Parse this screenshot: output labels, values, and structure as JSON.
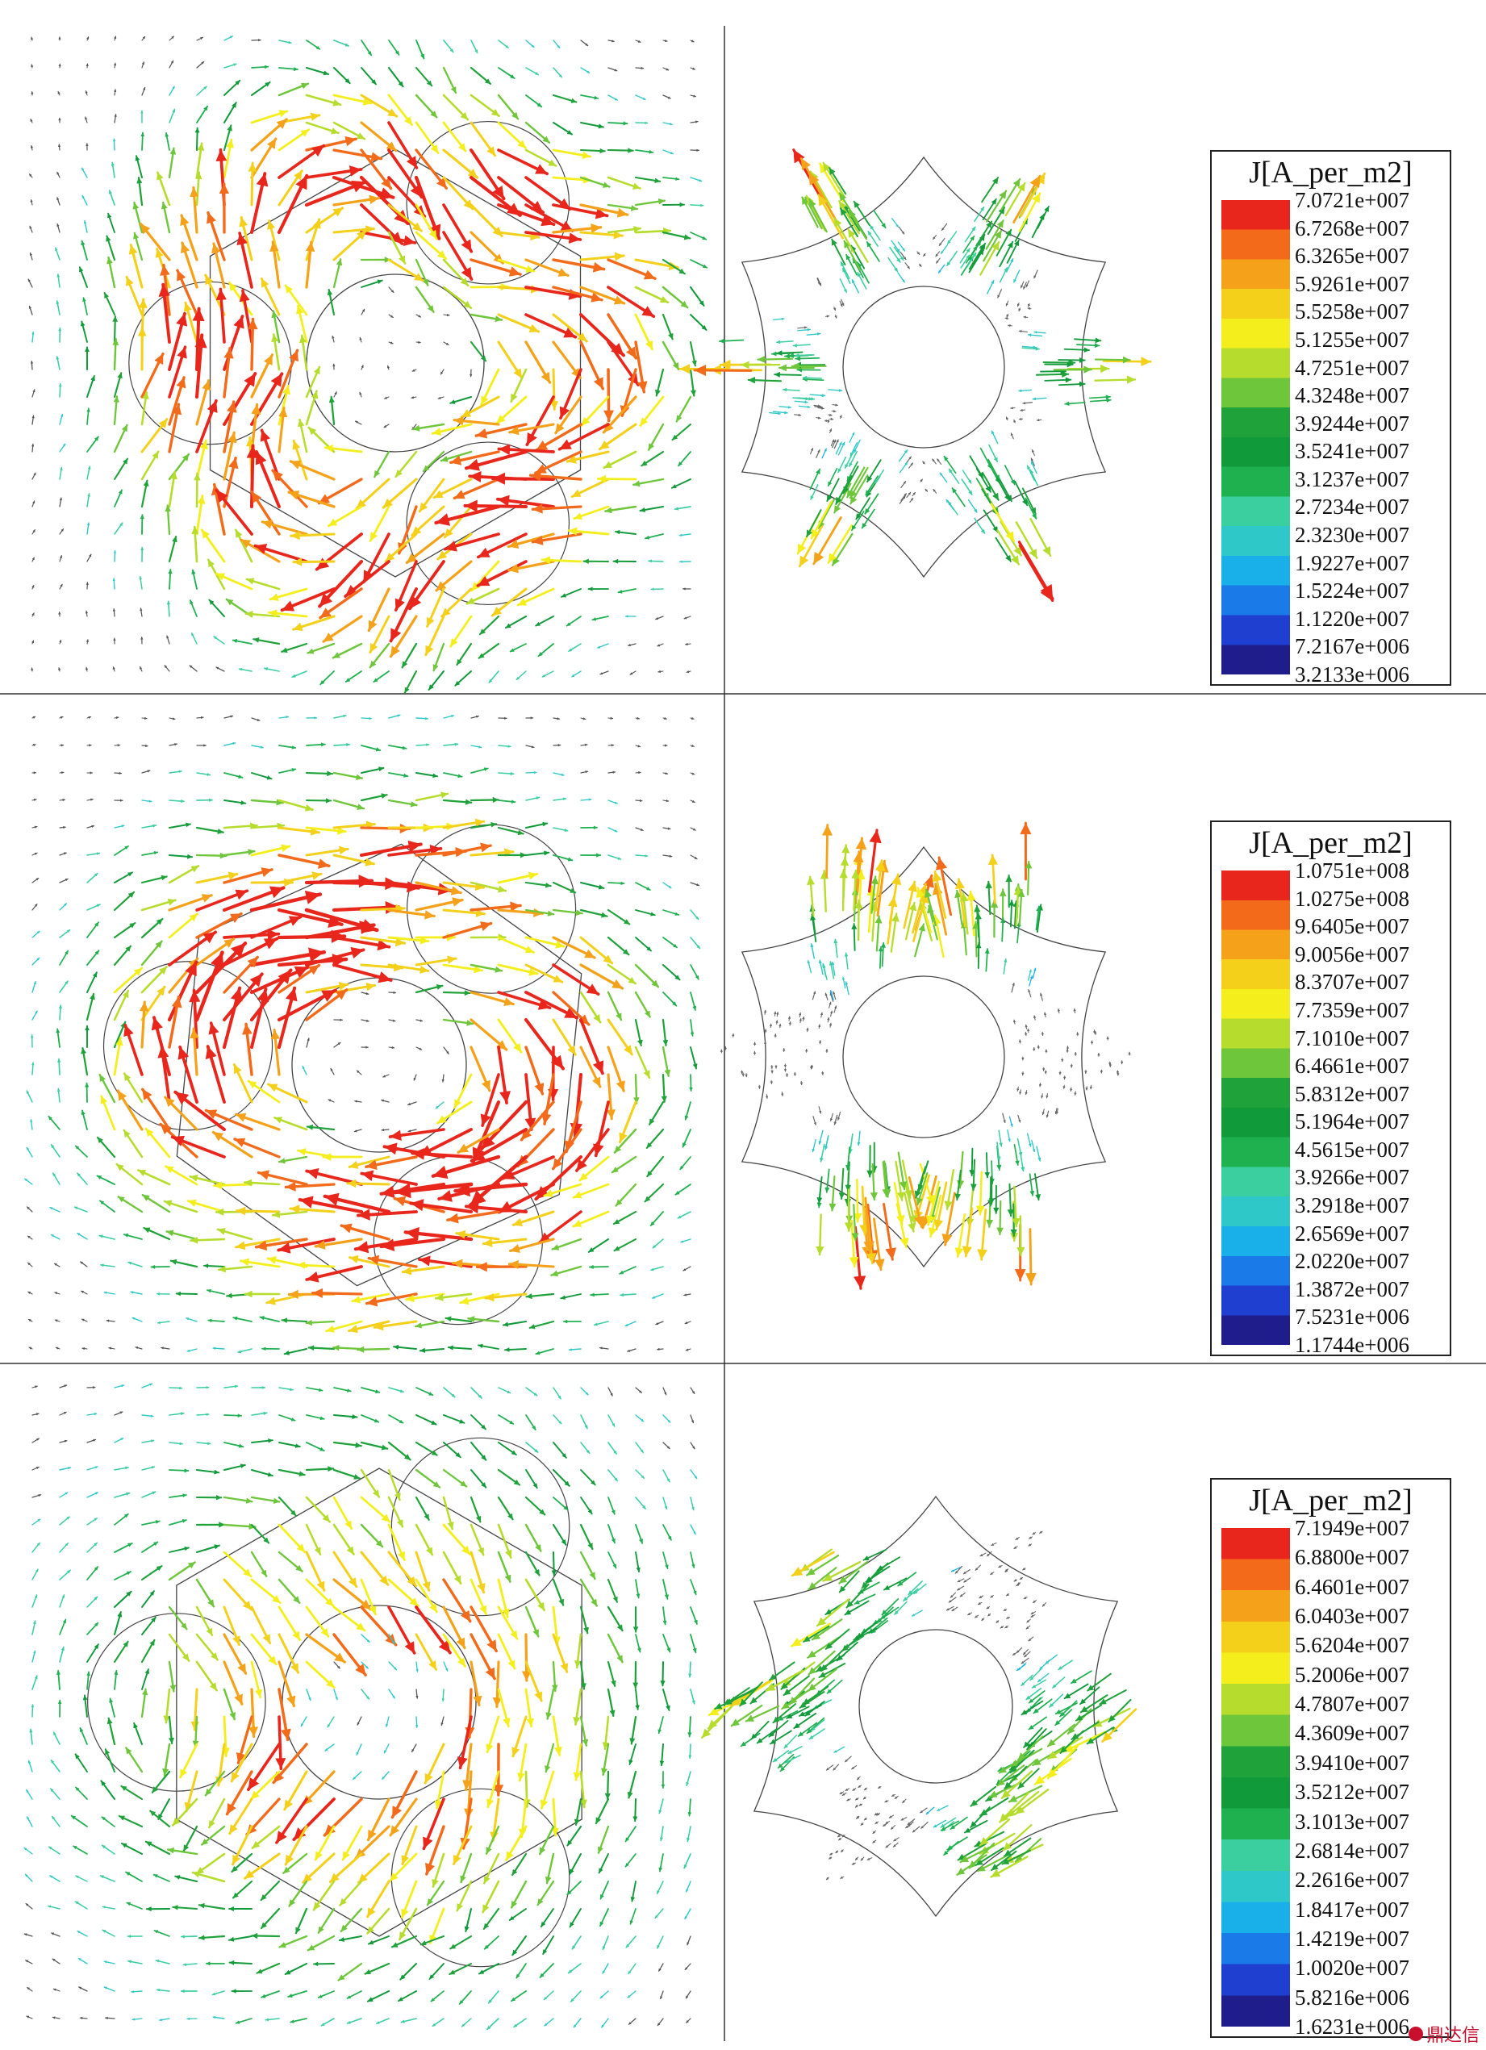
{
  "colormap": [
    "#1f1c8c",
    "#1f3fd0",
    "#1a7ae8",
    "#19b0ea",
    "#2ec8c8",
    "#3bcfa0",
    "#1fb050",
    "#119a3a",
    "#1fa23a",
    "#6ec63a",
    "#b6dd2e",
    "#f4ef1c",
    "#f4d01a",
    "#f5a21a",
    "#f36b1a",
    "#e8261c"
  ],
  "panels": [
    {
      "id": "row1",
      "legend": {
        "title": "J[A_per_m2]",
        "values": [
          "7.0721e+007",
          "6.7268e+007",
          "6.3265e+007",
          "5.9261e+007",
          "5.5258e+007",
          "5.1255e+007",
          "4.7251e+007",
          "4.3248e+007",
          "3.9244e+007",
          "3.5241e+007",
          "3.1237e+007",
          "2.7234e+007",
          "2.3230e+007",
          "1.9227e+007",
          "1.5224e+007",
          "1.1220e+007",
          "7.2167e+006",
          "3.2133e+006"
        ]
      }
    },
    {
      "id": "row2",
      "legend": {
        "title": "J[A_per_m2]",
        "values": [
          "1.0751e+008",
          "1.0275e+008",
          "9.6405e+007",
          "9.0056e+007",
          "8.3707e+007",
          "7.7359e+007",
          "7.1010e+007",
          "6.4661e+007",
          "5.8312e+007",
          "5.1964e+007",
          "4.5615e+007",
          "3.9266e+007",
          "3.2918e+007",
          "2.6569e+007",
          "2.0220e+007",
          "1.3872e+007",
          "7.5231e+006",
          "1.1744e+006"
        ]
      }
    },
    {
      "id": "row3",
      "legend": {
        "title": "J[A_per_m2]",
        "values": [
          "7.1949e+007",
          "6.8800e+007",
          "6.4601e+007",
          "6.0403e+007",
          "5.6204e+007",
          "5.2006e+007",
          "4.7807e+007",
          "4.3609e+007",
          "3.9410e+007",
          "3.5212e+007",
          "3.1013e+007",
          "2.6814e+007",
          "2.2616e+007",
          "1.8417e+007",
          "1.4219e+007",
          "1.0020e+007",
          "5.8216e+006",
          "1.6231e+006"
        ]
      }
    }
  ],
  "watermark": {
    "text": "鼎达信"
  }
}
